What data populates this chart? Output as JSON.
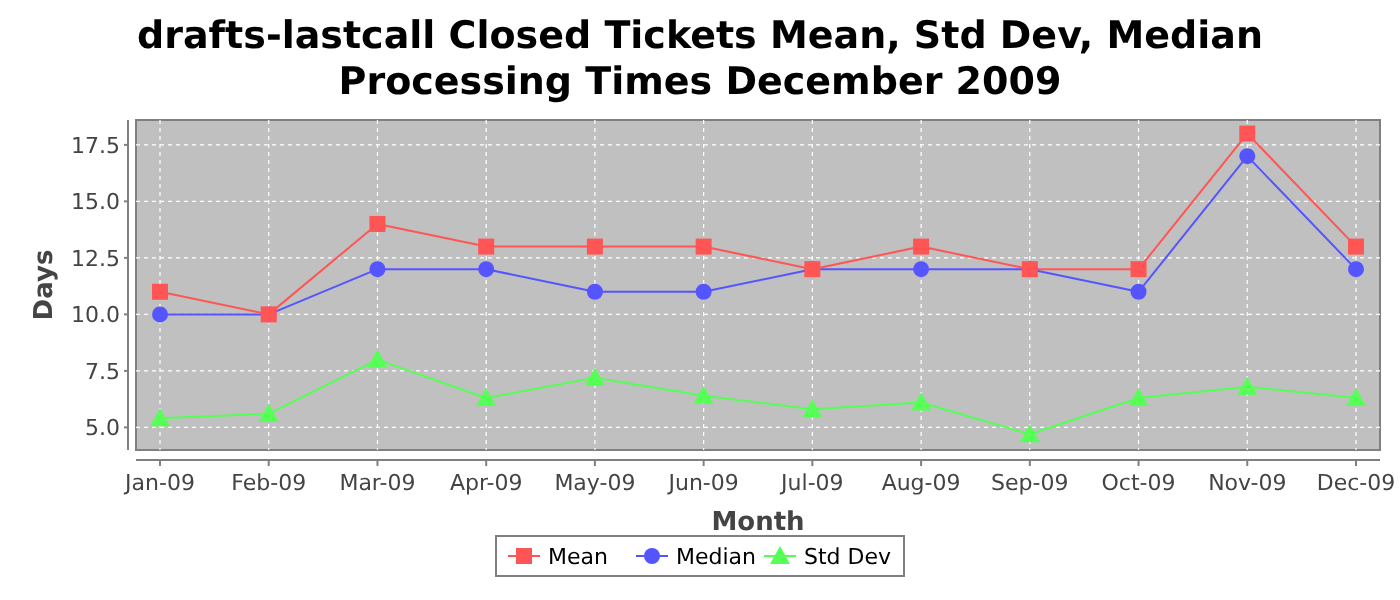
{
  "chart_data": {
    "type": "line",
    "title": "drafts-lastcall Closed Tickets Mean, Std Dev, Median Processing Times December 2009",
    "xlabel": "Month",
    "ylabel": "Days",
    "categories": [
      "Jan-09",
      "Feb-09",
      "Mar-09",
      "Apr-09",
      "May-09",
      "Jun-09",
      "Jul-09",
      "Aug-09",
      "Sep-09",
      "Oct-09",
      "Nov-09",
      "Dec-09"
    ],
    "series": [
      {
        "name": "Mean",
        "color": "#ff5555",
        "marker": "square",
        "values": [
          11,
          10,
          14,
          13,
          13,
          13,
          12,
          13,
          12,
          12,
          18,
          13
        ]
      },
      {
        "name": "Median",
        "color": "#5555ff",
        "marker": "circle",
        "values": [
          10,
          10,
          12,
          12,
          11,
          11,
          12,
          12,
          12,
          11,
          17,
          12
        ]
      },
      {
        "name": "Std Dev",
        "color": "#55ff55",
        "marker": "triangle",
        "values": [
          5.4,
          5.6,
          8.0,
          6.3,
          7.2,
          6.4,
          5.8,
          6.1,
          4.7,
          6.3,
          6.8,
          6.3
        ]
      }
    ],
    "ylim": [
      4.0,
      18.6
    ],
    "yticks": [
      {
        "value": 5,
        "label": "5.0"
      },
      {
        "value": 7.5,
        "label": "7.5"
      },
      {
        "value": 10,
        "label": "10.0"
      },
      {
        "value": 12.5,
        "label": "12.5"
      },
      {
        "value": 15,
        "label": "15.0"
      },
      {
        "value": 17.5,
        "label": "17.5"
      }
    ],
    "grid": true,
    "legend": "bottom"
  }
}
